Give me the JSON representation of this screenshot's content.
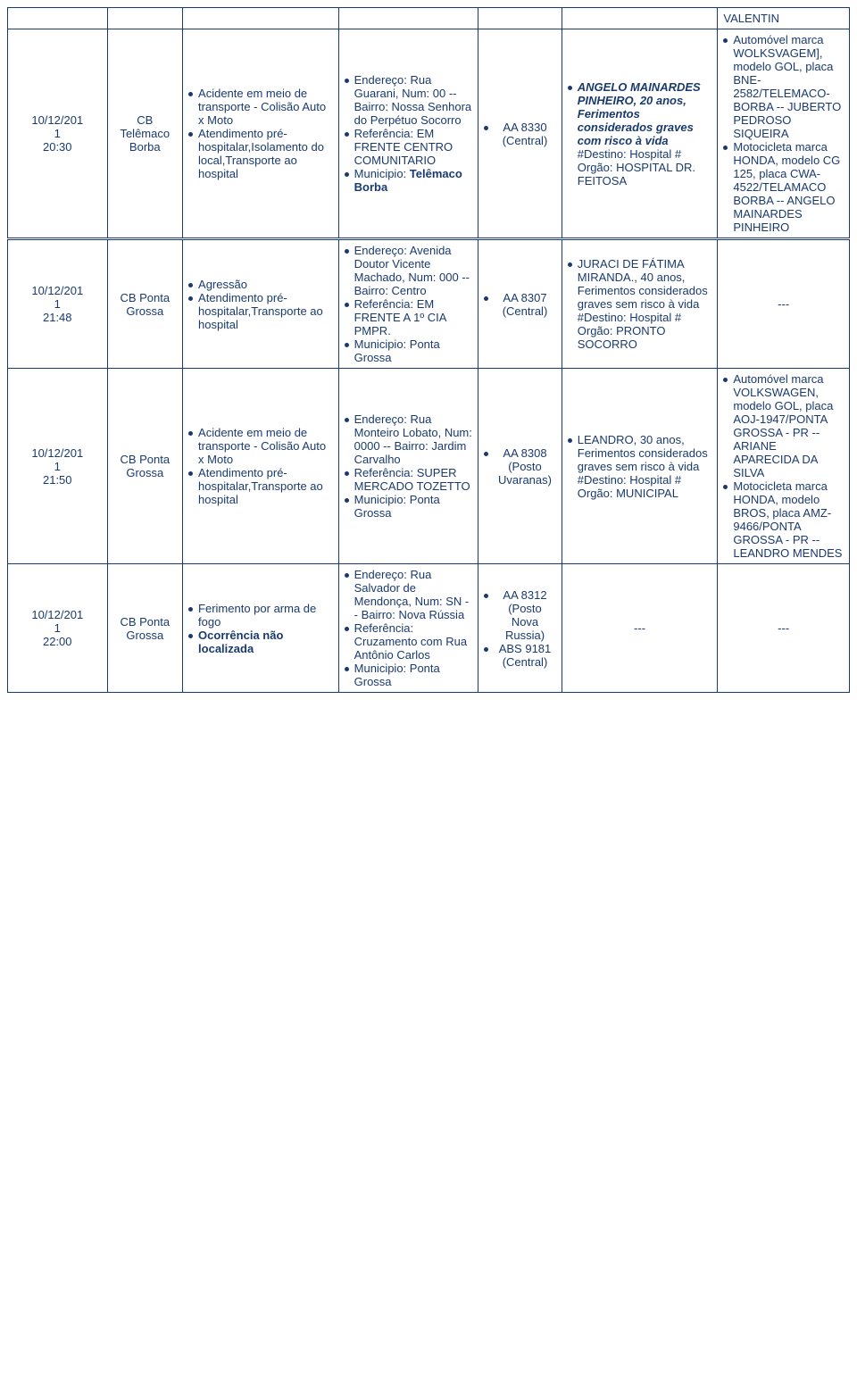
{
  "rows": [
    {
      "date": "",
      "unit": "",
      "event_html": "",
      "addr_html": "",
      "vtr_html": "",
      "victim_html": "",
      "vehicle_html": "VALENTIN"
    },
    {
      "date": "10/12/201<br>1<br>20:30",
      "unit": "CB Telêmaco Borba",
      "event_html": "<div class='bullet-line'><span class='dot'></span><span>Acidente em meio de transporte - Colisão Auto x Moto</span></div><div class='bullet-line'><span class='dot'></span><span>Atendimento pré-hospitalar,Isolamento do local,Transporte ao hospital</span></div>",
      "addr_html": "<div class='bullet-line'><span class='dot'></span><span>Endereço: Rua Guarani, Num: 00 -- Bairro: Nossa Senhora do Perpétuo Socorro</span></div><div class='bullet-line'><span class='dot'></span><span>Referência: EM FRENTE CENTRO COMUNITARIO</span></div><div class='bullet-line'><span class='dot'></span><span>Municipio: <span class='bold'>Telêmaco Borba</span></span></div>",
      "vtr_html": "<div class='bullet-line' style='justify-content:center'><span class='dot'></span><span>AA 8330 (Central)</span></div>",
      "victim_html": "<div class='bullet-line'><span class='dot'></span><span><span class='bi'>ANGELO MAINARDES PINHEIRO, 20 anos, Ferimentos considerados graves com risco à vida</span> #Destino: Hospital # Orgão: HOSPITAL DR. FEITOSA</span></div>",
      "vehicle_html": "<div class='bullet-line'><span class='dot'></span><span>Automóvel marca WOLKSVAGEM], modelo GOL, placa BNE-2582/TELEMACO-BORBA -- JUBERTO PEDROSO SIQUEIRA</span></div><div class='bullet-line'><span class='dot'></span><span>Motocicleta marca HONDA, modelo CG 125, placa CWA-4522/TELAMACO BORBA -- ANGELO MAINARDES PINHEIRO</span></div>"
    },
    {
      "sep": true,
      "date": "10/12/201<br>1<br>21:48",
      "unit": "CB Ponta Grossa",
      "event_html": "<div class='bullet-line'><span class='dot'></span><span>Agressão</span></div><div class='bullet-line'><span class='dot'></span><span>Atendimento pré-hospitalar,Transporte ao hospital</span></div>",
      "addr_html": "<div class='bullet-line'><span class='dot'></span><span>Endereço: Avenida Doutor Vicente Machado, Num: 000 -- Bairro: Centro</span></div><div class='bullet-line'><span class='dot'></span><span>Referência: EM FRENTE A 1º CIA PMPR.</span></div><div class='bullet-line'><span class='dot'></span><span>Municipio: Ponta Grossa</span></div>",
      "vtr_html": "<div class='bullet-line' style='justify-content:center'><span class='dot'></span><span>AA 8307 (Central)</span></div>",
      "victim_html": "<div class='bullet-line'><span class='dot'></span><span>JURACI DE FÁTIMA MIRANDA., 40 anos, Ferimentos considerados graves sem risco à vida #Destino: Hospital # Orgão: PRONTO SOCORRO</span></div>",
      "vehicle_html": "<div style='text-align:center'>---</div>"
    },
    {
      "date": "10/12/201<br>1<br>21:50",
      "unit": "CB Ponta Grossa",
      "event_html": "<div class='bullet-line'><span class='dot'></span><span>Acidente em meio de transporte - Colisão Auto x Moto</span></div><div class='bullet-line'><span class='dot'></span><span>Atendimento pré-hospitalar,Transporte ao hospital</span></div>",
      "addr_html": "<div class='bullet-line'><span class='dot'></span><span>Endereço: Rua Monteiro Lobato, Num: 0000 -- Bairro: Jardim Carvalho</span></div><div class='bullet-line'><span class='dot'></span><span>Referência: SUPER MERCADO TOZETTO</span></div><div class='bullet-line'><span class='dot'></span><span>Municipio: Ponta Grossa</span></div>",
      "vtr_html": "<div class='bullet-line' style='justify-content:center'><span class='dot'></span><span>AA 8308 (Posto Uvaranas)</span></div>",
      "victim_html": "<div class='bullet-line'><span class='dot'></span><span>LEANDRO, 30 anos, Ferimentos considerados graves sem risco à vida #Destino: Hospital # Orgão: MUNICIPAL</span></div>",
      "vehicle_html": "<div class='bullet-line'><span class='dot'></span><span>Automóvel marca VOLKSWAGEN, modelo GOL, placa AOJ-1947/PONTA GROSSA - PR -- ARIANE APARECIDA DA SILVA</span></div><div class='bullet-line'><span class='dot'></span><span>Motocicleta marca HONDA, modelo BROS, placa AMZ-9466/PONTA GROSSA - PR -- LEANDRO MENDES</span></div>"
    },
    {
      "date": "10/12/201<br>1<br>22:00",
      "unit": "CB Ponta Grossa",
      "event_html": "<div class='bullet-line'><span class='dot'></span><span>Ferimento por arma de fogo</span></div><div class='bullet-line'><span class='dot'></span><span><span class='bold'>Ocorrência não localizada</span></span></div>",
      "addr_html": "<div class='bullet-line'><span class='dot'></span><span>Endereço: Rua Salvador de Mendonça, Num: SN -- Bairro: Nova Rússia</span></div><div class='bullet-line'><span class='dot'></span><span>Referência: Cruzamento com Rua Antônio Carlos</span></div><div class='bullet-line'><span class='dot'></span><span>Municipio: Ponta Grossa</span></div>",
      "vtr_html": "<div class='bullet-line' style='justify-content:center'><span class='dot'></span><span>AA 8312 (Posto Nova Russia)</span></div><div class='bullet-line' style='justify-content:center'><span class='dot'></span><span>ABS 9181 (Central)</span></div>",
      "victim_html": "<div style='text-align:center'>---</div>",
      "vehicle_html": "<div style='text-align:center'>---</div>"
    }
  ]
}
